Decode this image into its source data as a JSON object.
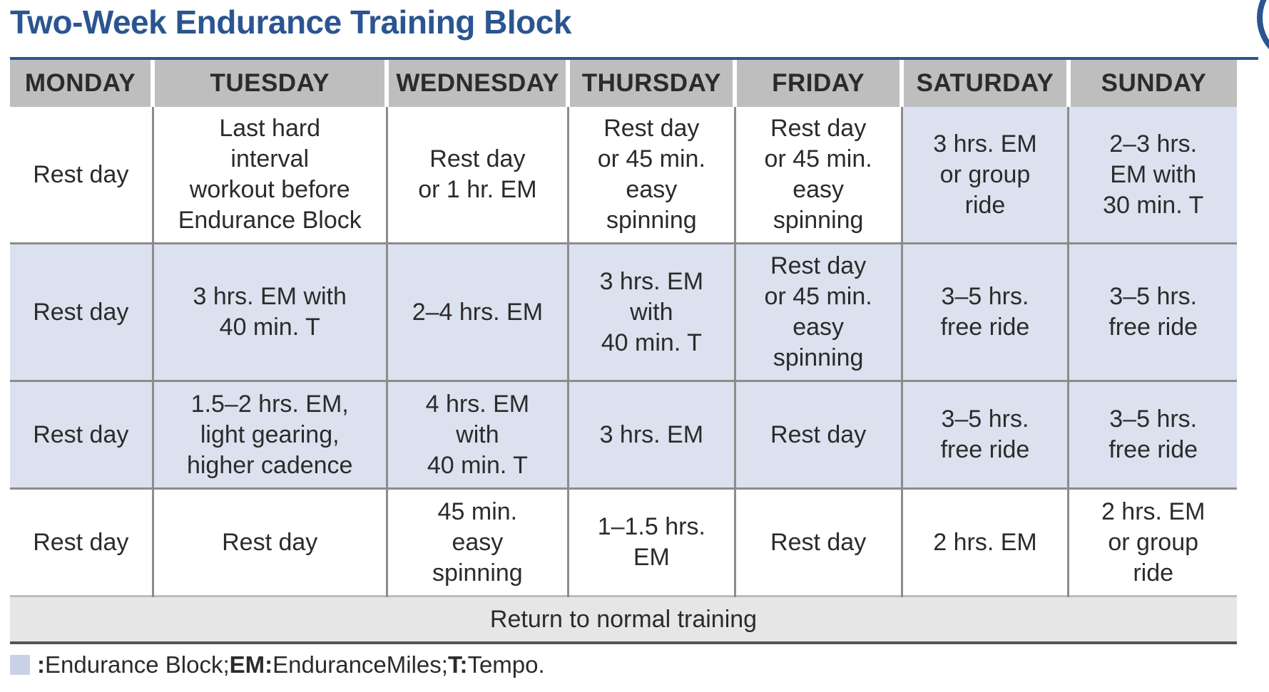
{
  "title": "Two-Week Endurance Training Block",
  "colors": {
    "title": "#2b5591",
    "header_bg": "#bebebe",
    "endurance_block_highlight": "#dbe1ee",
    "footer_bg": "#e6e6e6"
  },
  "table": {
    "headers": [
      "MONDAY",
      "TUESDAY",
      "WEDNESDAY",
      "THURSDAY",
      "FRIDAY",
      "SATURDAY",
      "SUNDAY"
    ],
    "rows": [
      {
        "cells": [
          {
            "lines": [
              "Rest day"
            ],
            "highlight": false
          },
          {
            "lines": [
              "Last hard",
              "interval",
              "workout before",
              "Endurance Block"
            ],
            "highlight": false
          },
          {
            "lines": [
              "Rest day",
              "or 1 hr. EM"
            ],
            "highlight": false
          },
          {
            "lines": [
              "Rest day",
              "or 45 min.",
              "easy",
              "spinning"
            ],
            "highlight": false
          },
          {
            "lines": [
              "Rest day",
              "or 45 min.",
              "easy",
              "spinning"
            ],
            "highlight": false
          },
          {
            "lines": [
              "3 hrs. EM",
              "or group",
              "ride"
            ],
            "highlight": true
          },
          {
            "lines": [
              "2–3 hrs.",
              "EM with",
              "30 min. T"
            ],
            "highlight": true
          }
        ]
      },
      {
        "cells": [
          {
            "lines": [
              "Rest day"
            ],
            "highlight": true
          },
          {
            "lines": [
              "3 hrs. EM with",
              "40 min. T"
            ],
            "highlight": true
          },
          {
            "lines": [
              "2–4 hrs. EM"
            ],
            "highlight": true
          },
          {
            "lines": [
              "3 hrs. EM",
              "with",
              "40 min. T"
            ],
            "highlight": true
          },
          {
            "lines": [
              "Rest day",
              "or 45 min.",
              "easy",
              "spinning"
            ],
            "highlight": true
          },
          {
            "lines": [
              "3–5 hrs.",
              "free ride"
            ],
            "highlight": true
          },
          {
            "lines": [
              "3–5 hrs.",
              "free ride"
            ],
            "highlight": true
          }
        ]
      },
      {
        "cells": [
          {
            "lines": [
              "Rest day"
            ],
            "highlight": true
          },
          {
            "lines": [
              "1.5–2 hrs. EM,",
              "light gearing,",
              "higher cadence"
            ],
            "highlight": true
          },
          {
            "lines": [
              "4 hrs. EM",
              "with",
              "40 min. T"
            ],
            "highlight": true
          },
          {
            "lines": [
              "3 hrs. EM"
            ],
            "highlight": true
          },
          {
            "lines": [
              "Rest day"
            ],
            "highlight": true
          },
          {
            "lines": [
              "3–5 hrs.",
              "free ride"
            ],
            "highlight": true
          },
          {
            "lines": [
              "3–5 hrs.",
              "free ride"
            ],
            "highlight": true
          }
        ]
      },
      {
        "cells": [
          {
            "lines": [
              "Rest day"
            ],
            "highlight": false
          },
          {
            "lines": [
              "Rest day"
            ],
            "highlight": false
          },
          {
            "lines": [
              "45 min.",
              "easy",
              "spinning"
            ],
            "highlight": false
          },
          {
            "lines": [
              "1–1.5 hrs.",
              "EM"
            ],
            "highlight": false
          },
          {
            "lines": [
              "Rest day"
            ],
            "highlight": false
          },
          {
            "lines": [
              "2 hrs. EM"
            ],
            "highlight": false
          },
          {
            "lines": [
              "2 hrs. EM",
              "or group",
              "ride"
            ],
            "highlight": false
          }
        ]
      }
    ],
    "footer": "Return to normal training"
  },
  "legend": {
    "swatch_sep": ": ",
    "swatch_text": "Endurance Block",
    "sep1": "; ",
    "em_key": "EM:",
    "em_text": " EnduranceMiles; ",
    "t_key": "T:",
    "t_text": " Tempo."
  }
}
